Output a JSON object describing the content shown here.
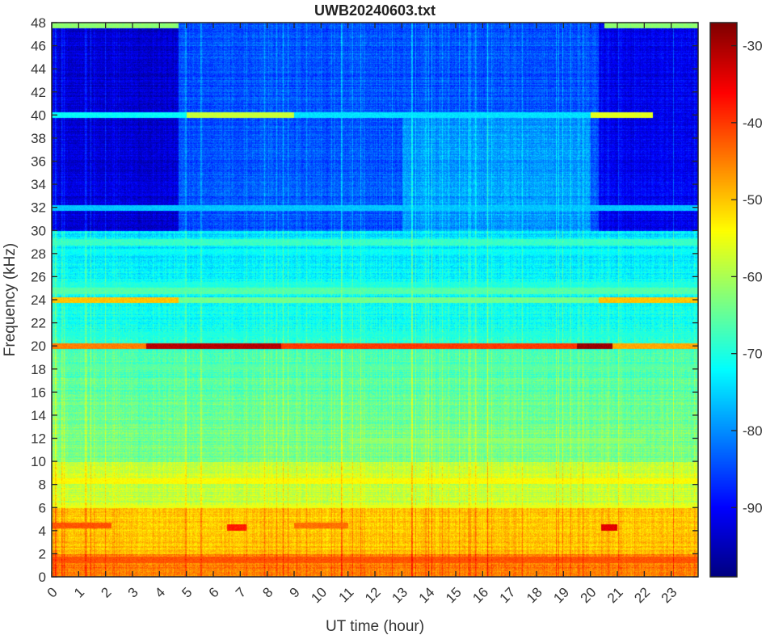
{
  "chart_data": {
    "type": "heatmap",
    "title": "UWB20240603.txt",
    "xlabel": "UT time (hour)",
    "ylabel": "Frequency (kHz)",
    "xlim": [
      0,
      24
    ],
    "ylim": [
      0,
      48
    ],
    "xticks": [
      0,
      1,
      2,
      3,
      4,
      5,
      6,
      7,
      8,
      9,
      10,
      11,
      12,
      13,
      14,
      15,
      16,
      17,
      18,
      19,
      20,
      21,
      22,
      23
    ],
    "yticks": [
      0,
      2,
      4,
      6,
      8,
      10,
      12,
      14,
      16,
      18,
      20,
      22,
      24,
      26,
      28,
      30,
      32,
      34,
      36,
      38,
      40,
      42,
      44,
      46,
      48
    ],
    "colormap": "jet",
    "clim": [
      -99,
      -27
    ],
    "colorbar_ticks": [
      -30,
      -40,
      -50,
      -60,
      -70,
      -80,
      -90
    ],
    "background_profile": [
      {
        "freq_range": [
          0,
          2
        ],
        "db": -45
      },
      {
        "freq_range": [
          2,
          6
        ],
        "db": -50
      },
      {
        "freq_range": [
          6,
          10
        ],
        "db": -58
      },
      {
        "freq_range": [
          10,
          20
        ],
        "db": -67
      },
      {
        "freq_range": [
          20,
          30
        ],
        "db": -74
      },
      {
        "freq_range": [
          30,
          48
        ],
        "db": -84
      }
    ],
    "quiet_periods": [
      {
        "time_range": [
          0,
          4.7
        ],
        "freq_min": 30,
        "db": -93
      },
      {
        "time_range": [
          20.3,
          24
        ],
        "freq_min": 30,
        "db": -91
      }
    ],
    "features": [
      {
        "freq": 20,
        "t": [
          0,
          3.5
        ],
        "db": -45
      },
      {
        "freq": 20,
        "t": [
          3.5,
          8.5
        ],
        "db": -31
      },
      {
        "freq": 20,
        "t": [
          8.5,
          19.5
        ],
        "db": -40
      },
      {
        "freq": 20,
        "t": [
          19.5,
          20.8
        ],
        "db": -29
      },
      {
        "freq": 20,
        "t": [
          20.8,
          24
        ],
        "db": -48
      },
      {
        "freq": 24,
        "t": [
          0,
          4.7
        ],
        "db": -50
      },
      {
        "freq": 24,
        "t": [
          4.7,
          20.3
        ],
        "db": -64
      },
      {
        "freq": 24,
        "t": [
          20.3,
          24
        ],
        "db": -50
      },
      {
        "freq": 24.8,
        "t": [
          0,
          24
        ],
        "db": -66
      },
      {
        "freq": 25.3,
        "t": [
          0,
          24
        ],
        "db": -70
      },
      {
        "freq": 40,
        "t": [
          0,
          5
        ],
        "db": -72
      },
      {
        "freq": 40,
        "t": [
          5,
          9
        ],
        "db": -58
      },
      {
        "freq": 40,
        "t": [
          9,
          20
        ],
        "db": -74
      },
      {
        "freq": 40,
        "t": [
          20,
          22.3
        ],
        "db": -56
      },
      {
        "freq": 29,
        "t": [
          0,
          24
        ],
        "db": -68
      },
      {
        "freq": 28.2,
        "t": [
          0,
          24
        ],
        "db": -72
      },
      {
        "freq": 47.8,
        "t": [
          0,
          4.7
        ],
        "db": -62
      },
      {
        "freq": 47.8,
        "t": [
          20.5,
          24
        ],
        "db": -62
      },
      {
        "freq": 32,
        "t": [
          0,
          24
        ],
        "db": -76
      },
      {
        "freq": 21,
        "t": [
          0,
          24
        ],
        "db": -70
      },
      {
        "freq": 18.2,
        "t": [
          0,
          24
        ],
        "db": -66
      },
      {
        "freq": 15,
        "t": [
          0,
          24
        ],
        "db": -70
      },
      {
        "freq": 11.8,
        "t": [
          11,
          22
        ],
        "db": -62
      },
      {
        "freq": 8.3,
        "t": [
          0,
          24
        ],
        "db": -54
      },
      {
        "freq": 6,
        "t": [
          0,
          24
        ],
        "db": -56
      },
      {
        "freq": 4.5,
        "t": [
          0,
          2.2
        ],
        "db": -42
      },
      {
        "freq": 4.5,
        "t": [
          9,
          11
        ],
        "db": -44
      },
      {
        "freq": 4.3,
        "t": [
          6.5,
          7.2
        ],
        "db": -38
      },
      {
        "freq": 4.3,
        "t": [
          20.4,
          21
        ],
        "db": -34
      },
      {
        "freq": 1.5,
        "t": [
          0,
          24
        ],
        "db": -42
      }
    ]
  }
}
